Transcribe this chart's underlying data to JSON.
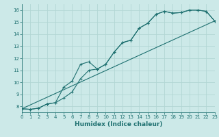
{
  "xlabel": "Humidex (Indice chaleur)",
  "xlim": [
    0,
    23
  ],
  "ylim": [
    7.5,
    16.5
  ],
  "xticks": [
    0,
    1,
    2,
    3,
    4,
    5,
    6,
    7,
    8,
    9,
    10,
    11,
    12,
    13,
    14,
    15,
    16,
    17,
    18,
    19,
    20,
    21,
    22,
    23
  ],
  "yticks": [
    8,
    9,
    10,
    11,
    12,
    13,
    14,
    15,
    16
  ],
  "bg_color": "#cce9e8",
  "grid_color": "#b2d6d4",
  "line_color": "#1e7070",
  "line1_x": [
    0,
    1,
    2,
    3,
    4,
    5,
    6,
    7,
    8,
    9,
    10,
    11,
    12,
    13,
    14,
    15,
    16,
    17,
    18,
    19,
    20,
    21,
    22,
    23
  ],
  "line1_y": [
    7.8,
    7.75,
    7.85,
    8.2,
    8.3,
    9.6,
    10.1,
    11.5,
    11.7,
    11.1,
    11.5,
    12.5,
    13.3,
    13.5,
    14.5,
    14.9,
    15.65,
    15.9,
    15.75,
    15.8,
    16.0,
    16.0,
    15.9,
    15.1
  ],
  "line2_x": [
    0,
    1,
    2,
    3,
    4,
    5,
    6,
    7,
    8,
    9,
    10,
    11,
    12,
    13,
    14,
    15,
    16,
    17,
    18,
    19,
    20,
    21,
    22,
    23
  ],
  "line2_y": [
    7.8,
    7.75,
    7.85,
    8.2,
    8.3,
    8.7,
    9.2,
    10.3,
    11.0,
    11.1,
    11.5,
    12.5,
    13.3,
    13.5,
    14.5,
    14.9,
    15.65,
    15.9,
    15.75,
    15.8,
    16.0,
    16.0,
    15.9,
    15.1
  ],
  "line3_x": [
    0,
    23
  ],
  "line3_y": [
    7.8,
    15.1
  ]
}
